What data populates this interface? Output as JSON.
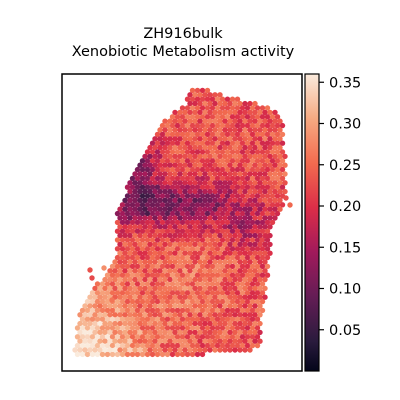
{
  "chart_data": {
    "type": "heatmap",
    "title": "ZH916bulk",
    "subtitle": "Xenobiotic Metabolism activity",
    "xlabel": "",
    "ylabel": "",
    "grid": false,
    "colormap": "rocket",
    "colorbar": {
      "range": [
        0.0,
        0.36
      ],
      "ticks": [
        0.05,
        0.1,
        0.15,
        0.2,
        0.25,
        0.3,
        0.35
      ],
      "tick_labels": [
        "0.05",
        "0.10",
        "0.15",
        "0.20",
        "0.25",
        "0.30",
        "0.35"
      ]
    },
    "regions": [
      {
        "region": "lower-left corner",
        "approx_value": 0.34
      },
      {
        "region": "lower-middle",
        "approx_value": 0.26
      },
      {
        "region": "upper-right",
        "approx_value": 0.24
      },
      {
        "region": "mid-left band",
        "approx_value": 0.12
      },
      {
        "region": "upper-left edge",
        "approx_value": 0.07
      }
    ],
    "colors": {
      "low": "#0b0d1f",
      "mid": "#d6334a",
      "high": "#fcdcc8"
    }
  }
}
